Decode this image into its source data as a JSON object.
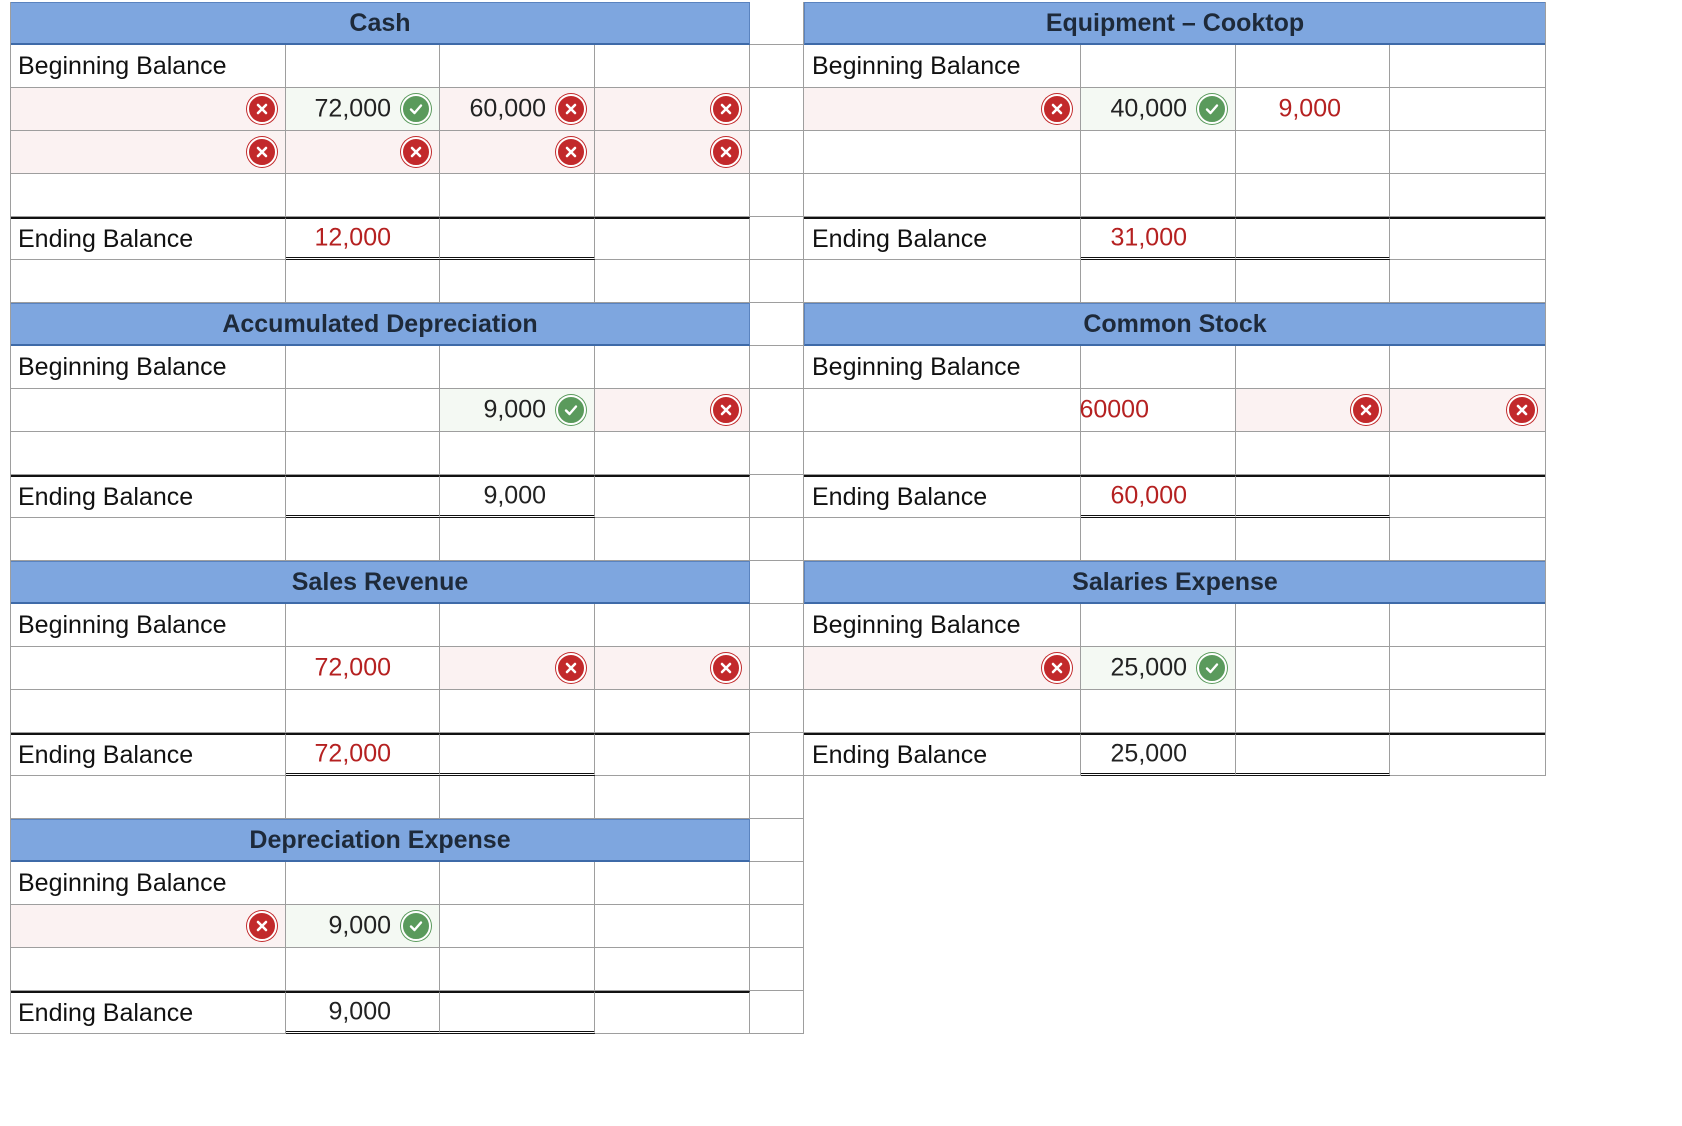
{
  "labels": {
    "beginning": "Beginning Balance",
    "ending": "Ending Balance"
  },
  "accounts": {
    "cash": {
      "title": "Cash",
      "row1": {
        "debit": "72,000",
        "credit": "60,000"
      },
      "ending": "12,000"
    },
    "equipment": {
      "title": "Equipment – Cooktop",
      "row1": {
        "debit": "40,000",
        "credit": "9,000"
      },
      "ending": "31,000"
    },
    "accdep": {
      "title": "Accumulated Depreciation",
      "row1": {
        "credit": "9,000"
      },
      "ending": "9,000"
    },
    "common": {
      "title": "Common Stock",
      "row1": {
        "debit": "60000"
      },
      "ending": "60,000"
    },
    "sales": {
      "title": "Sales Revenue",
      "row1": {
        "debit": "72,000"
      },
      "ending": "72,000"
    },
    "salaries": {
      "title": "Salaries Expense",
      "row1": {
        "debit": "25,000"
      },
      "ending": "25,000"
    },
    "depexp": {
      "title": "Depreciation Expense",
      "row1": {
        "debit": "9,000"
      },
      "ending": "9,000"
    }
  },
  "colors": {
    "header": "#7ea6df",
    "wrong": "#c2292b",
    "correct": "#5a9a5c",
    "red_text": "#b52121"
  },
  "icons": [
    "x-circle-icon",
    "check-circle-icon"
  ]
}
